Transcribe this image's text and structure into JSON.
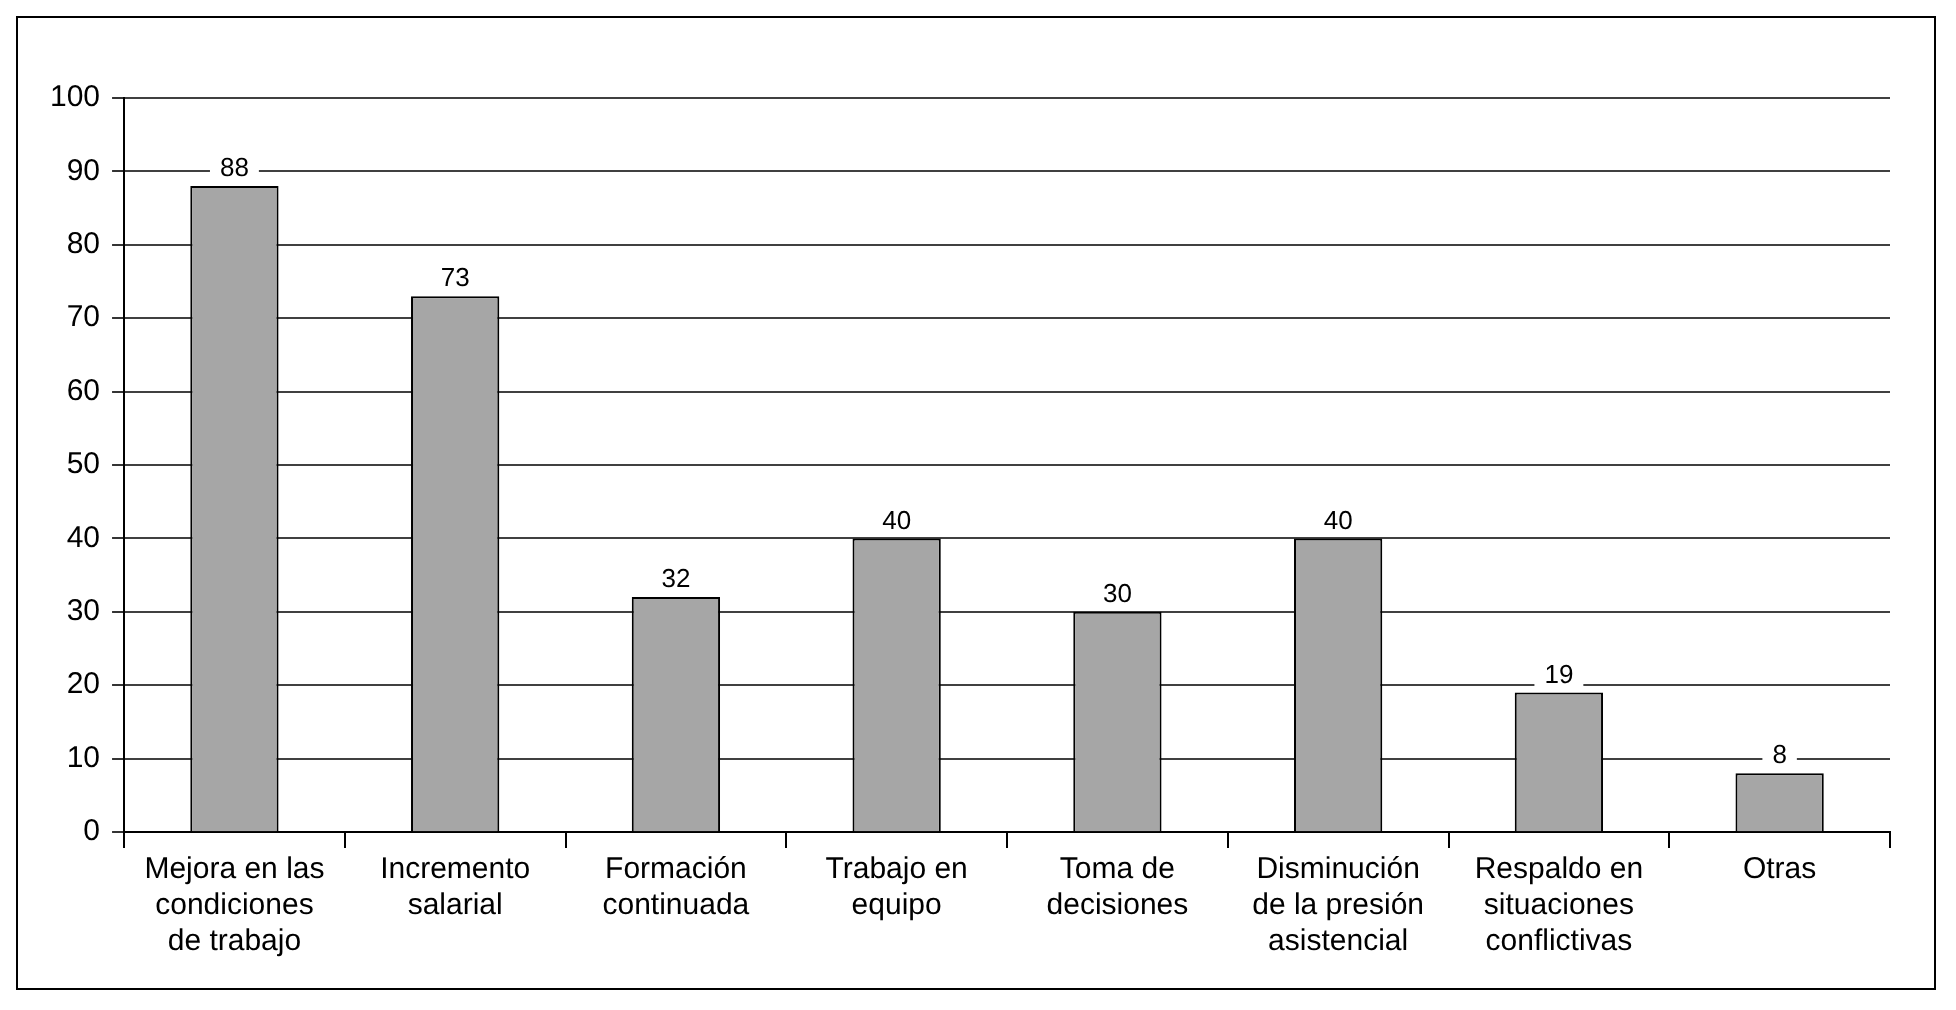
{
  "chart_data": {
    "type": "bar",
    "categories": [
      "Mejora en las condiciones de trabajo",
      "Incremento salarial",
      "Formación continuada",
      "Trabajo en equipo",
      "Toma de decisiones",
      "Disminución de la presión asistencial",
      "Respaldo en situaciones conflictivas",
      "Otras"
    ],
    "values": [
      88,
      73,
      32,
      40,
      30,
      40,
      19,
      8
    ],
    "color": "#a6a6a6",
    "ylim": [
      0,
      100
    ],
    "yticks": [
      0,
      10,
      20,
      30,
      40,
      50,
      60,
      70,
      80,
      90,
      100
    ],
    "grid": "y",
    "data_labels": true,
    "legend": false
  }
}
